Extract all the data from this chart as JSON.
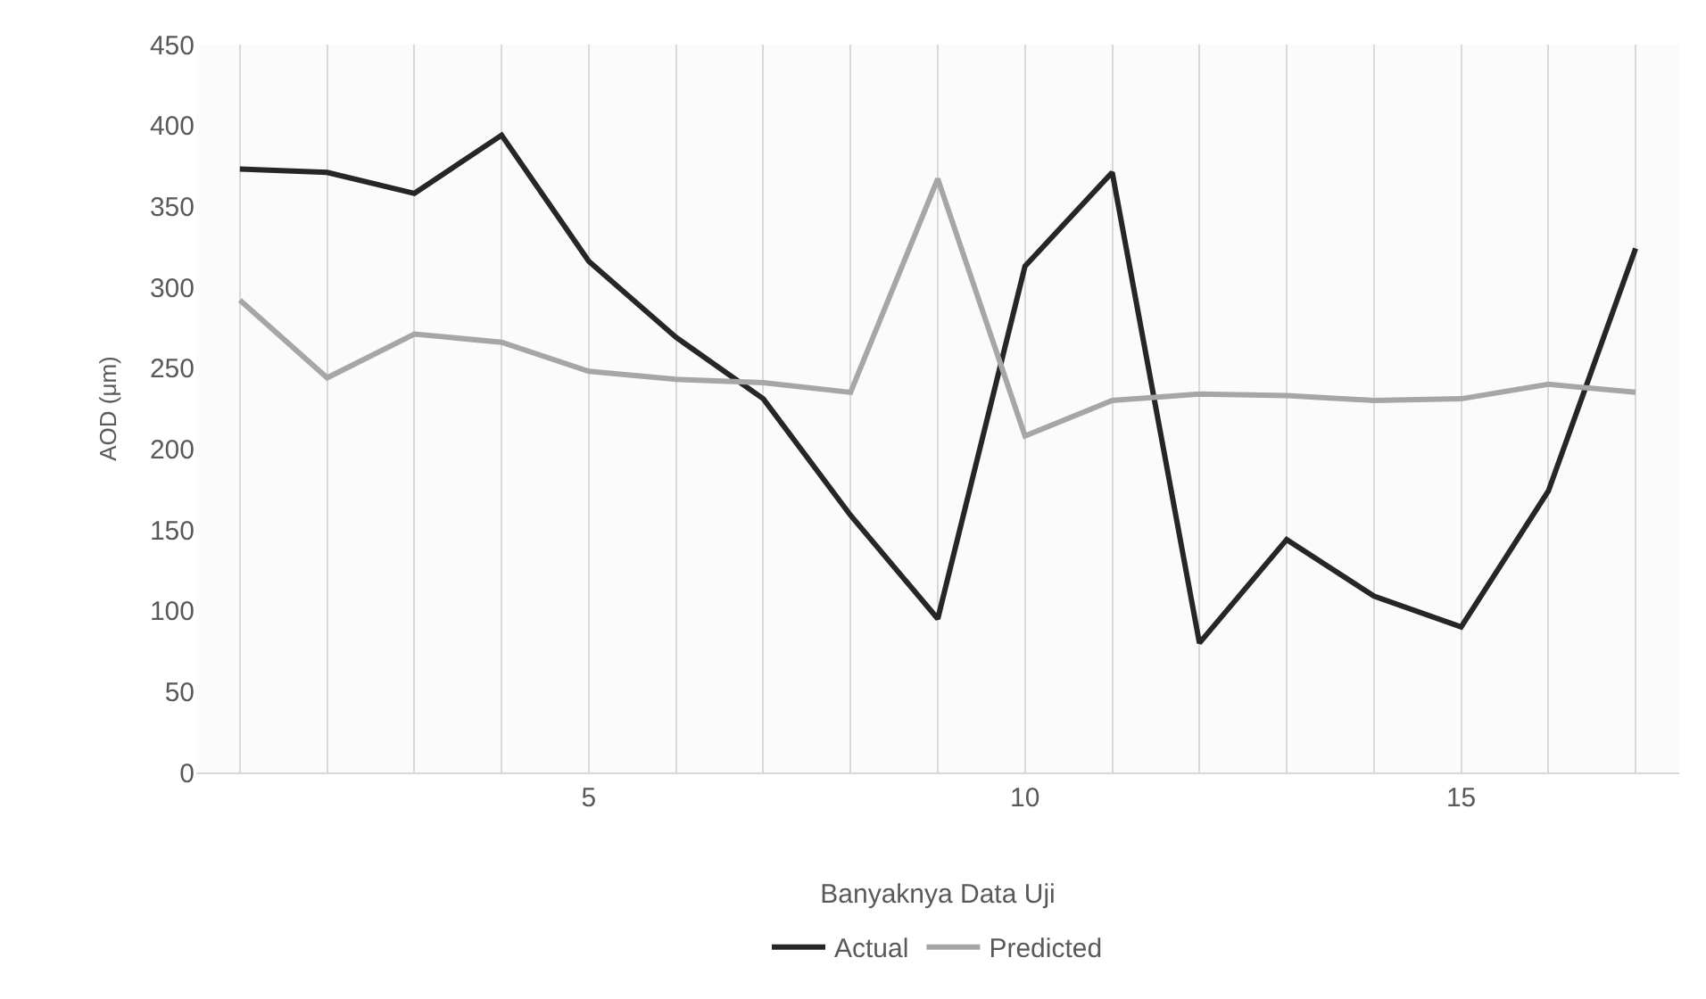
{
  "chart_data": {
    "type": "line",
    "xlabel": "Banyaknya Data Uji",
    "ylabel": "AOD (μm)",
    "x": [
      1,
      2,
      3,
      4,
      5,
      6,
      7,
      8,
      9,
      10,
      11,
      12,
      13,
      14,
      15,
      16,
      17
    ],
    "series": [
      {
        "name": "Actual",
        "color": "#262626",
        "values": [
          373,
          371,
          358,
          394,
          316,
          269,
          231,
          159,
          95,
          313,
          371,
          80,
          144,
          109,
          90,
          174,
          324
        ]
      },
      {
        "name": "Predicted",
        "color": "#a6a6a6",
        "values": [
          292,
          244,
          271,
          266,
          248,
          243,
          241,
          235,
          367,
          208,
          230,
          234,
          233,
          230,
          231,
          240,
          235
        ]
      }
    ],
    "xlim": [
      0.5,
      17.5
    ],
    "xticks": [
      {
        "value": 1,
        "label": null
      },
      {
        "value": 2,
        "label": null
      },
      {
        "value": 3,
        "label": null
      },
      {
        "value": 4,
        "label": null
      },
      5,
      {
        "value": 6,
        "label": null
      },
      {
        "value": 7,
        "label": null
      },
      {
        "value": 8,
        "label": null
      },
      {
        "value": 9,
        "label": null
      },
      10,
      {
        "value": 11,
        "label": null
      },
      {
        "value": 12,
        "label": null
      },
      {
        "value": 13,
        "label": null
      },
      {
        "value": 14,
        "label": null
      },
      15,
      {
        "value": 16,
        "label": null
      },
      {
        "value": 17,
        "label": null
      }
    ],
    "ylim": [
      0,
      450
    ],
    "yticks": [
      0,
      50,
      100,
      150,
      200,
      250,
      300,
      350,
      400,
      450
    ],
    "grid": "x",
    "legend": "bottom",
    "marker": "none",
    "line_style": "solid"
  }
}
